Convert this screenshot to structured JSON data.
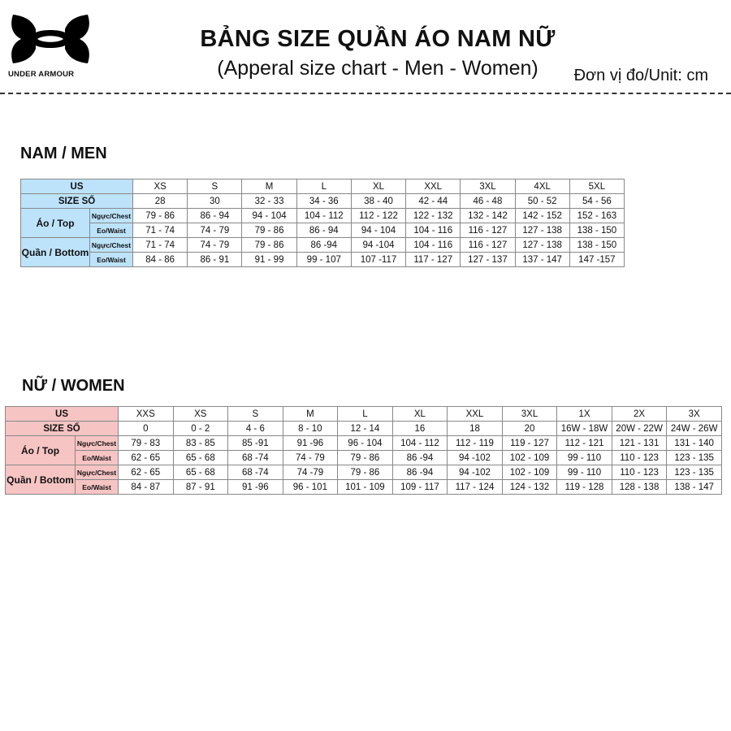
{
  "header": {
    "logo_text": "UNDER ARMOUR",
    "title": "BẢNG SIZE QUẦN ÁO NAM NỮ",
    "subtitle": "(Apperal size chart - Men - Women)",
    "unit": "Đơn vị đo/Unit: cm"
  },
  "men": {
    "heading": "NAM / MEN",
    "label_color": "#bde3fb",
    "row_labels": {
      "us": "US",
      "size": "SIZE SỐ",
      "top": "Áo / Top",
      "bottom": "Quần / Bottom",
      "chest": "Ngực/Chest",
      "waist": "Eo/Waist"
    },
    "us": [
      "XS",
      "S",
      "M",
      "L",
      "XL",
      "XXL",
      "3XL",
      "4XL",
      "5XL"
    ],
    "size": [
      "28",
      "30",
      "32 - 33",
      "34 - 36",
      "38 - 40",
      "42 - 44",
      "46 - 48",
      "50 - 52",
      "54 - 56"
    ],
    "top_chest": [
      "79 - 86",
      "86 - 94",
      "94 - 104",
      "104 - 112",
      "112 - 122",
      "122 - 132",
      "132 - 142",
      "142 - 152",
      "152 - 163"
    ],
    "top_waist": [
      "71 - 74",
      "74 - 79",
      "79 - 86",
      "86 - 94",
      "94 - 104",
      "104 - 116",
      "116 - 127",
      "127 - 138",
      "138 - 150"
    ],
    "bottom_chest": [
      "71 - 74",
      "74 - 79",
      "79 - 86",
      "86 -94",
      "94 -104",
      "104 - 116",
      "116 - 127",
      "127 - 138",
      "138 - 150"
    ],
    "bottom_waist": [
      "84 - 86",
      "86 - 91",
      "91 - 99",
      "99 - 107",
      "107 -117",
      "117 - 127",
      "127 - 137",
      "137 - 147",
      "147 -157"
    ]
  },
  "women": {
    "heading": "NỮ / WOMEN",
    "label_color": "#f7c4c4",
    "row_labels": {
      "us": "US",
      "size": "SIZE SỐ",
      "top": "Áo / Top",
      "bottom": "Quần / Bottom",
      "chest": "Ngực/Chest",
      "waist": "Eo/Waist"
    },
    "us": [
      "XXS",
      "XS",
      "S",
      "M",
      "L",
      "XL",
      "XXL",
      "3XL",
      "1X",
      "2X",
      "3X"
    ],
    "size": [
      "0",
      "0 - 2",
      "4 - 6",
      "8 - 10",
      "12 - 14",
      "16",
      "18",
      "20",
      "16W - 18W",
      "20W - 22W",
      "24W - 26W"
    ],
    "top_chest": [
      "79 - 83",
      "83 - 85",
      "85 -91",
      "91 -96",
      "96 - 104",
      "104 - 112",
      "112 - 119",
      "119 - 127",
      "112 - 121",
      "121 - 131",
      "131 - 140"
    ],
    "top_waist": [
      "62 - 65",
      "65 - 68",
      "68 -74",
      "74 - 79",
      "79 - 86",
      "86 -94",
      "94 -102",
      "102 - 109",
      "99 - 110",
      "110 - 123",
      "123 - 135"
    ],
    "bottom_chest": [
      "62 - 65",
      "65 - 68",
      "68 -74",
      "74 -79",
      "79 - 86",
      "86 -94",
      "94 -102",
      "102 - 109",
      "99 - 110",
      "110 - 123",
      "123 - 135"
    ],
    "bottom_waist": [
      "84 - 87",
      "87 - 91",
      "91 -96",
      "96 - 101",
      "101 - 109",
      "109 - 117",
      "117 - 124",
      "124 - 132",
      "119 - 128",
      "128 - 138",
      "138 - 147"
    ]
  }
}
